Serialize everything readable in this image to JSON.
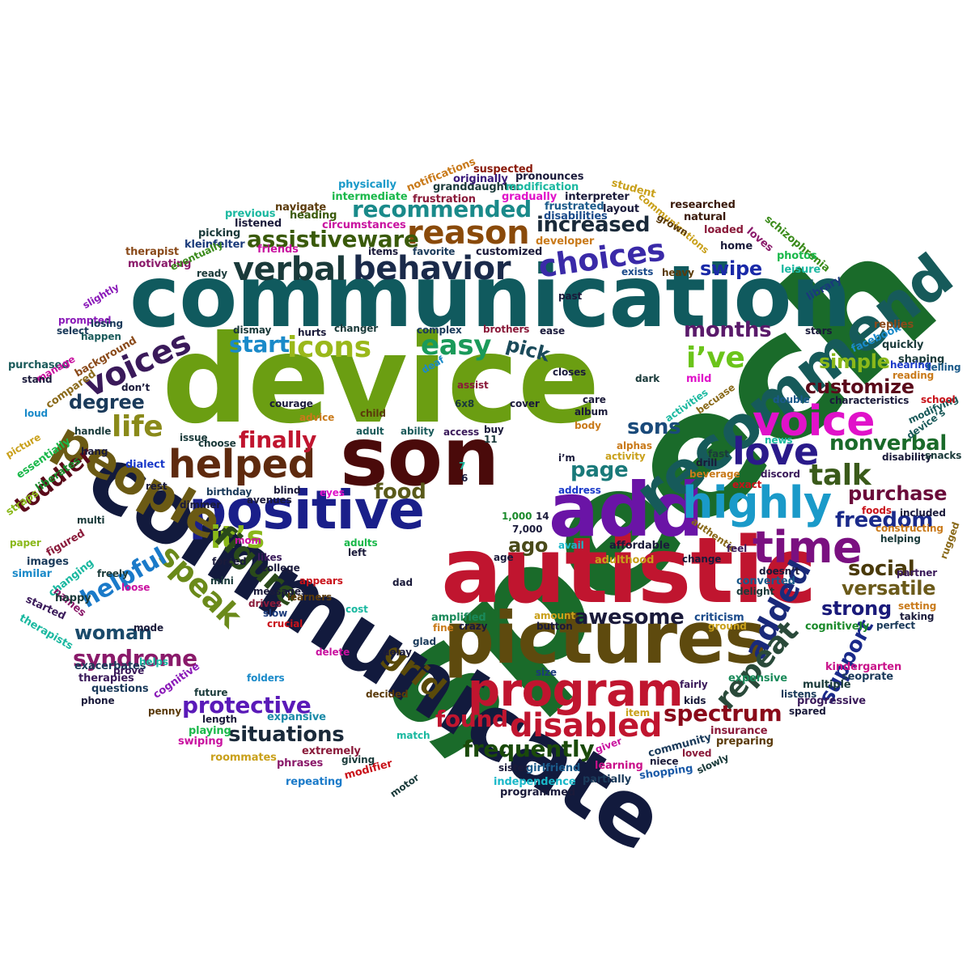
{
  "words": [
    {
      "text": "speech",
      "color": "#1a6b2a"
    },
    {
      "text": "device",
      "color": "#6b9e12"
    },
    {
      "text": "communication",
      "color": "#105a5e"
    },
    {
      "text": "communicate",
      "color": "#121a3d"
    },
    {
      "text": "autistic",
      "color": "#c0152f"
    },
    {
      "text": "son",
      "color": "#4a0a0a"
    },
    {
      "text": "pictures",
      "color": "#5e4a0e"
    },
    {
      "text": "add",
      "color": "#6a14a6"
    },
    {
      "text": "recommend",
      "color": "#165a5a"
    },
    {
      "text": "positive",
      "color": "#1a1f8a"
    },
    {
      "text": "people",
      "color": "#6b5a14"
    },
    {
      "text": "program",
      "color": "#c0152f"
    },
    {
      "text": "voice",
      "color": "#e012c9"
    },
    {
      "text": "helped",
      "color": "#5e2a0e"
    },
    {
      "text": "highly",
      "color": "#1a9ac9"
    },
    {
      "text": "time",
      "color": "#7a1080"
    },
    {
      "text": "love",
      "color": "#2a1a8a"
    },
    {
      "text": "reason",
      "color": "#8a4a0a"
    },
    {
      "text": "behavior",
      "color": "#1a2a4a"
    },
    {
      "text": "verbal",
      "color": "#1a3a3a"
    },
    {
      "text": "choices",
      "color": "#3a2aa8"
    },
    {
      "text": "disabled",
      "color": "#c0152f"
    },
    {
      "text": "it’s",
      "color": "#8ab81a"
    },
    {
      "text": "speak",
      "color": "#6b8a1a"
    },
    {
      "text": "figure",
      "color": "#2a4a1a"
    },
    {
      "text": "added",
      "color": "#1a2a7a"
    },
    {
      "text": "repeat",
      "color": "#2a4a3a"
    },
    {
      "text": "grid",
      "color": "#5a4a0a"
    },
    {
      "text": "voices",
      "color": "#3a1a5a"
    },
    {
      "text": "icons",
      "color": "#9ab81a"
    },
    {
      "text": "easy",
      "color": "#1a9a5a"
    },
    {
      "text": "i’ve",
      "color": "#6bc41a"
    },
    {
      "text": "talk",
      "color": "#3a5a1a"
    },
    {
      "text": "life",
      "color": "#8a8a1a"
    },
    {
      "text": "toddler",
      "color": "#5a0a1a"
    },
    {
      "text": "helpful",
      "color": "#1a7ac9"
    },
    {
      "text": "syndrome",
      "color": "#8a1a6a"
    },
    {
      "text": "awesome",
      "color": "#1a1a3a"
    },
    {
      "text": "spectrum",
      "color": "#8a0a1a"
    },
    {
      "text": "support",
      "color": "#1a2a8a"
    },
    {
      "text": "frequently",
      "color": "#1a4a0a"
    },
    {
      "text": "found",
      "color": "#c0152f"
    },
    {
      "text": "situations",
      "color": "#1a2a3a"
    },
    {
      "text": "protective",
      "color": "#5a1ab8"
    },
    {
      "text": "woman",
      "color": "#1a4a6a"
    },
    {
      "text": "finally",
      "color": "#c0152f"
    },
    {
      "text": "food",
      "color": "#5a5a1a"
    },
    {
      "text": "ago",
      "color": "#4a4a1a"
    },
    {
      "text": "page",
      "color": "#1a7a7a"
    },
    {
      "text": "sons",
      "color": "#1a4a7a"
    },
    {
      "text": "nonverbal",
      "color": "#1a6a2a"
    },
    {
      "text": "freedom",
      "color": "#1a2a8a"
    },
    {
      "text": "purchase",
      "color": "#6a0a3a"
    },
    {
      "text": "social",
      "color": "#4a3a0a"
    },
    {
      "text": "versatile",
      "color": "#6b5a1a"
    },
    {
      "text": "strong",
      "color": "#1a1a7a"
    },
    {
      "text": "customize",
      "color": "#5a0a1a"
    },
    {
      "text": "simple",
      "color": "#8ab81a"
    },
    {
      "text": "months",
      "color": "#5a1a6a"
    },
    {
      "text": "swipe",
      "color": "#1a2aa8"
    },
    {
      "text": "increased",
      "color": "#1a2a3a"
    },
    {
      "text": "assistiveware",
      "color": "#3a5a0a"
    },
    {
      "text": "recommended",
      "color": "#1a8a8a"
    },
    {
      "text": "start",
      "color": "#1a8ac9"
    },
    {
      "text": "pick",
      "color": "#1a4a5a"
    },
    {
      "text": "degree",
      "color": "#1a3a5a"
    },
    {
      "text": "mild",
      "color": "#e012c9"
    },
    {
      "text": "kindergarten",
      "color": "#c9128a"
    },
    {
      "text": "therapists",
      "color": "#1ab8a0"
    },
    {
      "text": "cognitively",
      "color": "#1a8a2a"
    },
    {
      "text": "insurance",
      "color": "#8a1a3a"
    },
    {
      "text": "expansive",
      "color": "#1a8aa8"
    },
    {
      "text": "independence",
      "color": "#1ab8c9"
    },
    {
      "text": "programmed",
      "color": "#1a1a3a"
    },
    {
      "text": "shopping",
      "color": "#1a5aa8"
    },
    {
      "text": "communications",
      "color": "#c9a01a"
    },
    {
      "text": "schizophrenia",
      "color": "#3a8a1a"
    },
    {
      "text": "granddaughter",
      "color": "#1a3a3a"
    },
    {
      "text": "pronounces",
      "color": "#1a1a3a"
    },
    {
      "text": "notifications",
      "color": "#c97a1a"
    },
    {
      "text": "circumstances",
      "color": "#c912a0"
    },
    {
      "text": "intermediate",
      "color": "#1ab84a"
    },
    {
      "text": "physically",
      "color": "#1a9ac9"
    },
    {
      "text": "modification",
      "color": "#1ab8a0"
    },
    {
      "text": "frustration",
      "color": "#8a1a3a"
    },
    {
      "text": "kleinfelter",
      "color": "#1a3a7a"
    },
    {
      "text": "characteristics",
      "color": "#1a1a3a"
    },
    {
      "text": "constructing",
      "color": "#c97a1a"
    },
    {
      "text": "progressive",
      "color": "#3a1a5a"
    },
    {
      "text": "exacerbates",
      "color": "#1a3a5a"
    },
    {
      "text": "facebook",
      "color": "#1a8ac9"
    },
    {
      "text": "researched",
      "color": "#3a1a0a"
    },
    {
      "text": "interpreter",
      "color": "#1a1a3a"
    },
    {
      "text": "disabilities",
      "color": "#1a4a8a"
    },
    {
      "text": "suspected",
      "color": "#8a1a0a"
    },
    {
      "text": "originally",
      "color": "#3a1a7a"
    },
    {
      "text": "gradually",
      "color": "#e012c9"
    },
    {
      "text": "frustrated",
      "color": "#1a5a8a"
    },
    {
      "text": "developer",
      "color": "#c97a1a"
    },
    {
      "text": "customized",
      "color": "#1a1a3a"
    },
    {
      "text": "motivating",
      "color": "#8a1a6a"
    },
    {
      "text": "therapist",
      "color": "#8a4a1a"
    },
    {
      "text": "eventually",
      "color": "#3a8a1a"
    },
    {
      "text": "background",
      "color": "#8a4a1a"
    },
    {
      "text": "purchased",
      "color": "#1a5a5a"
    },
    {
      "text": "compared",
      "color": "#8a6a1a"
    },
    {
      "text": "essentially",
      "color": "#1ab84a"
    },
    {
      "text": "liberates",
      "color": "#1a8a2a"
    },
    {
      "text": "community",
      "color": "#1a3a5a"
    },
    {
      "text": "roommates",
      "color": "#c9a01a"
    },
    {
      "text": "girlfriend",
      "color": "#1a5a8a"
    },
    {
      "text": "learning",
      "color": "#c9128a"
    },
    {
      "text": "partially",
      "color": "#1a3a5a"
    },
    {
      "text": "preparing",
      "color": "#5a3a0a"
    },
    {
      "text": "extremely",
      "color": "#8a1a3a"
    },
    {
      "text": "modifier",
      "color": "#c9121a"
    },
    {
      "text": "repeating",
      "color": "#1a7ac9"
    },
    {
      "text": "phrases",
      "color": "#8a1a6a"
    },
    {
      "text": "swiping",
      "color": "#c912a0"
    },
    {
      "text": "playing",
      "color": "#1ab84a"
    },
    {
      "text": "questions",
      "color": "#1a3a5a"
    },
    {
      "text": "therapies",
      "color": "#3a1a5a"
    },
    {
      "text": "cognitive",
      "color": "#8a1ab8"
    },
    {
      "text": "amplified",
      "color": "#1a8a5a"
    },
    {
      "text": "criticism",
      "color": "#1a4a8a"
    },
    {
      "text": "converted",
      "color": "#1a5a8a"
    },
    {
      "text": "adulthood",
      "color": "#c9a01a"
    },
    {
      "text": "affordable",
      "color": "#1a1a3a"
    },
    {
      "text": "authentic",
      "color": "#8a6a1a"
    },
    {
      "text": "expensive",
      "color": "#1a8a5a"
    },
    {
      "text": "multiple",
      "color": "#1a3a3a"
    },
    {
      "text": "seoprate",
      "color": "#1a3a5a"
    },
    {
      "text": "included",
      "color": "#1a1a3a"
    },
    {
      "text": "disability",
      "color": "#1a1a3a"
    },
    {
      "text": "modifying",
      "color": "#1a5a5a"
    },
    {
      "text": "activities",
      "color": "#1ab8a0"
    },
    {
      "text": "becuase",
      "color": "#8a6a1a"
    },
    {
      "text": "beverage",
      "color": "#c97a1a"
    },
    {
      "text": "birthday",
      "color": "#1a3a5a"
    },
    {
      "text": "avenues",
      "color": "#1a1a3a"
    },
    {
      "text": "dialect",
      "color": "#1a3ac9"
    },
    {
      "text": "straps",
      "color": "#8ab81a"
    },
    {
      "text": "similar",
      "color": "#1a8ac9"
    },
    {
      "text": "changing",
      "color": "#1ab8a0"
    },
    {
      "text": "images",
      "color": "#1a3a5a"
    },
    {
      "text": "figured",
      "color": "#8a1a3a"
    },
    {
      "text": "started",
      "color": "#3a1a5a"
    },
    {
      "text": "names",
      "color": "#8a1a6a"
    },
    {
      "text": "happy",
      "color": "#1a3a3a"
    },
    {
      "text": "college",
      "color": "#1a1a3a"
    },
    {
      "text": "messages",
      "color": "#1a1a3a"
    },
    {
      "text": "learners",
      "color": "#5a3a0a"
    },
    {
      "text": "navigate",
      "color": "#5a3a0a"
    },
    {
      "text": "listened",
      "color": "#1a1a3a"
    },
    {
      "text": "previous",
      "color": "#1ab8a0"
    },
    {
      "text": "heading",
      "color": "#3a5a0a"
    },
    {
      "text": "picking",
      "color": "#1a3a3a"
    },
    {
      "text": "friends",
      "color": "#c912a0"
    },
    {
      "text": "student",
      "color": "#c9a01a"
    },
    {
      "text": "natural",
      "color": "#3a1a0a"
    },
    {
      "text": "layout",
      "color": "#1a1a3a"
    },
    {
      "text": "grown",
      "color": "#5a3a0a"
    },
    {
      "text": "loaded",
      "color": "#8a1a3a"
    },
    {
      "text": "loves",
      "color": "#8a1a6a"
    },
    {
      "text": "home",
      "color": "#1a1a3a"
    },
    {
      "text": "photos",
      "color": "#1ab84a"
    },
    {
      "text": "leisure",
      "color": "#1ab8a0"
    },
    {
      "text": "library",
      "color": "#1a3a7a"
    },
    {
      "text": "replies",
      "color": "#8a4a1a"
    },
    {
      "text": "quickly",
      "color": "#1a3a3a"
    },
    {
      "text": "shaping",
      "color": "#1a3a3a"
    },
    {
      "text": "hearing",
      "color": "#1a3ac9"
    },
    {
      "text": "telling",
      "color": "#1a5a8a"
    },
    {
      "text": "reading",
      "color": "#c97a1a"
    },
    {
      "text": "school",
      "color": "#c9121a"
    },
    {
      "text": "snacks",
      "color": "#1a3a3a"
    },
    {
      "text": "partner",
      "color": "#3a1a5a"
    },
    {
      "text": "setting",
      "color": "#c97a1a"
    },
    {
      "text": "taking",
      "color": "#1a1a3a"
    },
    {
      "text": "perfect",
      "color": "#1a3a5a"
    },
    {
      "text": "rugged",
      "color": "#8a6a1a"
    },
    {
      "text": "helping",
      "color": "#1a3a3a"
    },
    {
      "text": "double",
      "color": "#1a5a8a"
    },
    {
      "text": "device’s",
      "color": "#1a5a5a"
    },
    {
      "text": "stars",
      "color": "#1a1a3a"
    },
    {
      "text": "exists",
      "color": "#1a4a8a"
    },
    {
      "text": "heavy",
      "color": "#5a3a0a"
    },
    {
      "text": "ease",
      "color": "#1a1a3a"
    },
    {
      "text": "brothers",
      "color": "#8a1a3a"
    },
    {
      "text": "complex",
      "color": "#1a3a5a"
    },
    {
      "text": "changer",
      "color": "#1a3a3a"
    },
    {
      "text": "hurts",
      "color": "#1a1a3a"
    },
    {
      "text": "dismay",
      "color": "#1a3a3a"
    },
    {
      "text": "past",
      "color": "#1a1a3a"
    },
    {
      "text": "ready",
      "color": "#1a3a3a"
    },
    {
      "text": "slightly",
      "color": "#8a1ab8"
    },
    {
      "text": "prompted",
      "color": "#8a1ab8"
    },
    {
      "text": "select",
      "color": "#1a3a5a"
    },
    {
      "text": "losing",
      "color": "#1a3a5a"
    },
    {
      "text": "happen",
      "color": "#1a5a5a"
    },
    {
      "text": "manage",
      "color": "#c912a0"
    },
    {
      "text": "stand",
      "color": "#1a1a3a"
    },
    {
      "text": "loud",
      "color": "#1a8ac9"
    },
    {
      "text": "handle",
      "color": "#1a3a3a"
    },
    {
      "text": "picture",
      "color": "#c9a01a"
    },
    {
      "text": "hang",
      "color": "#1a1a3a"
    },
    {
      "text": "multi",
      "color": "#1a3a3a"
    },
    {
      "text": "rest",
      "color": "#1a1a3a"
    },
    {
      "text": "paper",
      "color": "#8ab81a"
    },
    {
      "text": "mini",
      "color": "#1a3a3a"
    },
    {
      "text": "dimmer",
      "color": "#1a1a3a"
    },
    {
      "text": "blind",
      "color": "#1a1a3a"
    },
    {
      "text": "eyes",
      "color": "#e012c9"
    },
    {
      "text": "drives",
      "color": "#8a1a3a"
    },
    {
      "text": "slow",
      "color": "#1a3a7a"
    },
    {
      "text": "crucial",
      "color": "#c9121a"
    },
    {
      "text": "appears",
      "color": "#c9121a"
    },
    {
      "text": "forced",
      "color": "#1a1a3a"
    },
    {
      "text": "likes",
      "color": "#3a1a5a"
    },
    {
      "text": "left",
      "color": "#1a1a3a"
    },
    {
      "text": "adults",
      "color": "#1ab84a"
    },
    {
      "text": "mom",
      "color": "#c912a0"
    },
    {
      "text": "freely",
      "color": "#1a3a3a"
    },
    {
      "text": "loose",
      "color": "#c912a0"
    },
    {
      "text": "dad",
      "color": "#1a1a3a"
    },
    {
      "text": "cost",
      "color": "#1ab8a0"
    },
    {
      "text": "crazy",
      "color": "#1a1a3a"
    },
    {
      "text": "fine",
      "color": "#c97a1a"
    },
    {
      "text": "delete",
      "color": "#c912a0"
    },
    {
      "text": "delay",
      "color": "#1a1a3a"
    },
    {
      "text": "mode",
      "color": "#1a1a3a"
    },
    {
      "text": "prove",
      "color": "#3a1a5a"
    },
    {
      "text": "helps",
      "color": "#1ab8a0"
    },
    {
      "text": "decided",
      "color": "#5a3a0a"
    },
    {
      "text": "folders",
      "color": "#1a8ac9"
    },
    {
      "text": "future",
      "color": "#1a3a3a"
    },
    {
      "text": "penny",
      "color": "#5a3a0a"
    },
    {
      "text": "length",
      "color": "#1a1a3a"
    },
    {
      "text": "match",
      "color": "#1ab8a0"
    },
    {
      "text": "giving",
      "color": "#1a3a3a"
    },
    {
      "text": "sister",
      "color": "#1a1a3a"
    },
    {
      "text": "motor",
      "color": "#1a3a3a"
    },
    {
      "text": "giver",
      "color": "#c912a0"
    },
    {
      "text": "niece",
      "color": "#1a1a3a"
    },
    {
      "text": "loved",
      "color": "#8a1a3a"
    },
    {
      "text": "slowly",
      "color": "#1a3a3a"
    },
    {
      "text": "kids",
      "color": "#1a1a3a"
    },
    {
      "text": "item",
      "color": "#c9a01a"
    },
    {
      "text": "spared",
      "color": "#1a1a3a"
    },
    {
      "text": "listens",
      "color": "#1a3a5a"
    },
    {
      "text": "fairly",
      "color": "#3a1a5a"
    },
    {
      "text": "size",
      "color": "#1a3a7a"
    },
    {
      "text": "amount",
      "color": "#c9a01a"
    },
    {
      "text": "button",
      "color": "#1a1a3a"
    },
    {
      "text": "glad",
      "color": "#1a3a5a"
    },
    {
      "text": "ground",
      "color": "#c9a01a"
    },
    {
      "text": "change",
      "color": "#1a1a3a"
    },
    {
      "text": "delight",
      "color": "#1a3a3a"
    },
    {
      "text": "doesn’t",
      "color": "#1a1a3a"
    },
    {
      "text": "feel",
      "color": "#3a1a5a"
    },
    {
      "text": "foods",
      "color": "#c9121a"
    },
    {
      "text": "exact",
      "color": "#c9121a"
    },
    {
      "text": "discord",
      "color": "#3a1a5a"
    },
    {
      "text": "drill",
      "color": "#1a1a3a"
    },
    {
      "text": "fast",
      "color": "#1a3a3a"
    },
    {
      "text": "news",
      "color": "#1ab8a0"
    },
    {
      "text": "alphas",
      "color": "#c97a1a"
    },
    {
      "text": "address",
      "color": "#1a3ac9"
    },
    {
      "text": "avail",
      "color": "#1ab8c9"
    },
    {
      "text": "age",
      "color": "#1a1a3a"
    },
    {
      "text": "7,000",
      "color": "#1a1a3a"
    },
    {
      "text": "1,000",
      "color": "#1a8a2a"
    },
    {
      "text": "14",
      "color": "#1a1a3a"
    },
    {
      "text": "7",
      "color": "#1ab8a0"
    },
    {
      "text": "6",
      "color": "#1a1a3a"
    },
    {
      "text": "i’m",
      "color": "#1a1a3a"
    },
    {
      "text": "activity",
      "color": "#c9a01a"
    },
    {
      "text": "buy",
      "color": "#1a1a3a"
    },
    {
      "text": "11",
      "color": "#1a3a3a"
    },
    {
      "text": "access",
      "color": "#3a1a5a"
    },
    {
      "text": "ability",
      "color": "#1a5a5a"
    },
    {
      "text": "adult",
      "color": "#1a5a5a"
    },
    {
      "text": "child",
      "color": "#5a3a0a"
    },
    {
      "text": "advice",
      "color": "#c97a1a"
    },
    {
      "text": "courage",
      "color": "#1a1a3a"
    },
    {
      "text": "6x8",
      "color": "#1a3a3a"
    },
    {
      "text": "assist",
      "color": "#8a1a3a"
    },
    {
      "text": "cover",
      "color": "#1a1a3a"
    },
    {
      "text": "body",
      "color": "#c97a1a"
    },
    {
      "text": "album",
      "color": "#1a1a3a"
    },
    {
      "text": "care",
      "color": "#1a1a3a"
    },
    {
      "text": "dark",
      "color": "#1a3a3a"
    },
    {
      "text": "closes",
      "color": "#1a1a3a"
    },
    {
      "text": "deaf",
      "color": "#1a8ac9"
    },
    {
      "text": "don’t",
      "color": "#1a1a3a"
    },
    {
      "text": "issue",
      "color": "#1a3a3a"
    },
    {
      "text": "choose",
      "color": "#1a3a3a"
    },
    {
      "text": "phone",
      "color": "#1a1a3a"
    },
    {
      "text": "items",
      "color": "#1a1a3a"
    },
    {
      "text": "favorite",
      "color": "#1a3a5a"
    }
  ]
}
